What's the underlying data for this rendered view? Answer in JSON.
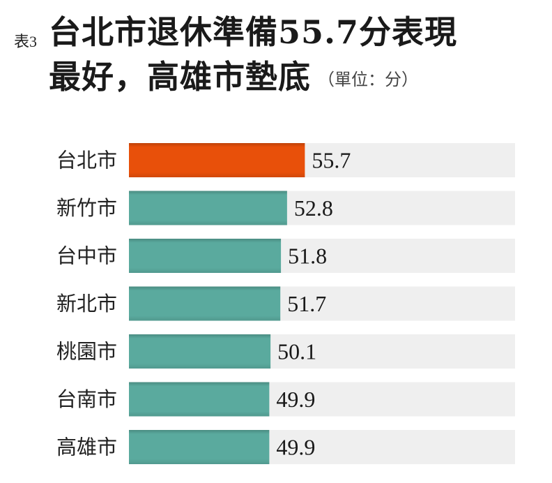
{
  "header": {
    "tag": "表3",
    "title_line1": "台北市退休準備55.7分表現",
    "title_line2": "最好，高雄市墊底",
    "unit": "（單位：分）"
  },
  "colors": {
    "highlight": "#e8500a",
    "bar": "#5aaa9e",
    "track": "#efefef"
  },
  "chart_data": {
    "type": "bar",
    "orientation": "horizontal",
    "categories": [
      "台北市",
      "新竹市",
      "台中市",
      "新北市",
      "桃園市",
      "台南市",
      "高雄市"
    ],
    "values": [
      55.7,
      52.8,
      51.8,
      51.7,
      50.1,
      49.9,
      49.9
    ],
    "value_labels": [
      "55.7",
      "52.8",
      "51.8",
      "51.7",
      "50.1",
      "49.9",
      "49.9"
    ],
    "highlight_index": 0,
    "xlim": [
      27,
      90
    ],
    "grid": false,
    "legend": "none"
  }
}
